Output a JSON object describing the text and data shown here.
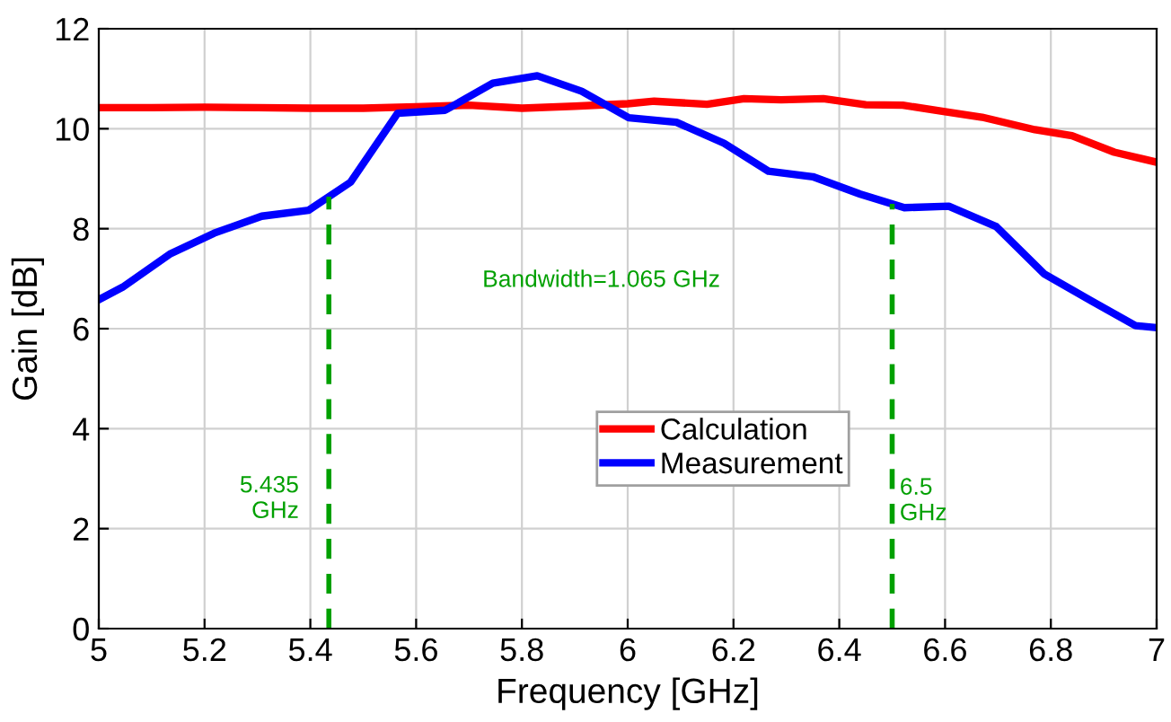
{
  "chart_data": {
    "type": "line",
    "xlabel": "Frequency [GHz]",
    "ylabel": "Gain [dB]",
    "xlim": [
      5,
      7
    ],
    "ylim": [
      0,
      12
    ],
    "xticks": [
      5,
      5.2,
      5.4,
      5.6,
      5.8,
      6,
      6.2,
      6.4,
      6.6,
      6.8,
      7
    ],
    "yticks": [
      0,
      2,
      4,
      6,
      8,
      10,
      12
    ],
    "grid": true,
    "legend": "center",
    "line_style": "solid",
    "marker": "none",
    "series": [
      {
        "name": "Calculation",
        "color": "#ff0000",
        "x": [
          5.0,
          5.1,
          5.2,
          5.3,
          5.4,
          5.5,
          5.6,
          5.7,
          5.8,
          5.9,
          6.0,
          6.05,
          6.15,
          6.22,
          6.29,
          6.37,
          6.45,
          6.52,
          6.6,
          6.67,
          6.77,
          6.84,
          6.92,
          7.0
        ],
        "values": [
          10.42,
          10.42,
          10.43,
          10.42,
          10.41,
          10.41,
          10.44,
          10.47,
          10.41,
          10.45,
          10.5,
          10.55,
          10.49,
          10.6,
          10.58,
          10.6,
          10.48,
          10.47,
          10.34,
          10.23,
          9.98,
          9.86,
          9.53,
          9.33
        ]
      },
      {
        "name": "Measurement",
        "color": "#0000ff",
        "x": [
          5.0,
          5.045,
          5.134,
          5.218,
          5.308,
          5.397,
          5.476,
          5.565,
          5.655,
          5.745,
          5.829,
          5.913,
          6.002,
          6.092,
          6.182,
          6.266,
          6.35,
          6.44,
          6.523,
          6.607,
          6.697,
          6.787,
          6.876,
          6.96,
          7.0
        ],
        "values": [
          6.58,
          6.83,
          7.49,
          7.91,
          8.25,
          8.37,
          8.93,
          10.31,
          10.37,
          10.91,
          11.06,
          10.75,
          10.22,
          10.13,
          9.71,
          9.15,
          9.04,
          8.69,
          8.42,
          8.45,
          8.04,
          7.1,
          6.56,
          6.06,
          6.02
        ]
      }
    ],
    "ref_lines": [
      {
        "axis": "x",
        "value": 5.435,
        "label": "5.435\nGHz",
        "color": "#00a000",
        "line_style": "dashed"
      },
      {
        "axis": "x",
        "value": 6.5,
        "label": "6.5\nGHz",
        "color": "#00a000",
        "line_style": "dashed"
      }
    ],
    "annotations": [
      "Bandwidth=1.065 GHz"
    ]
  }
}
